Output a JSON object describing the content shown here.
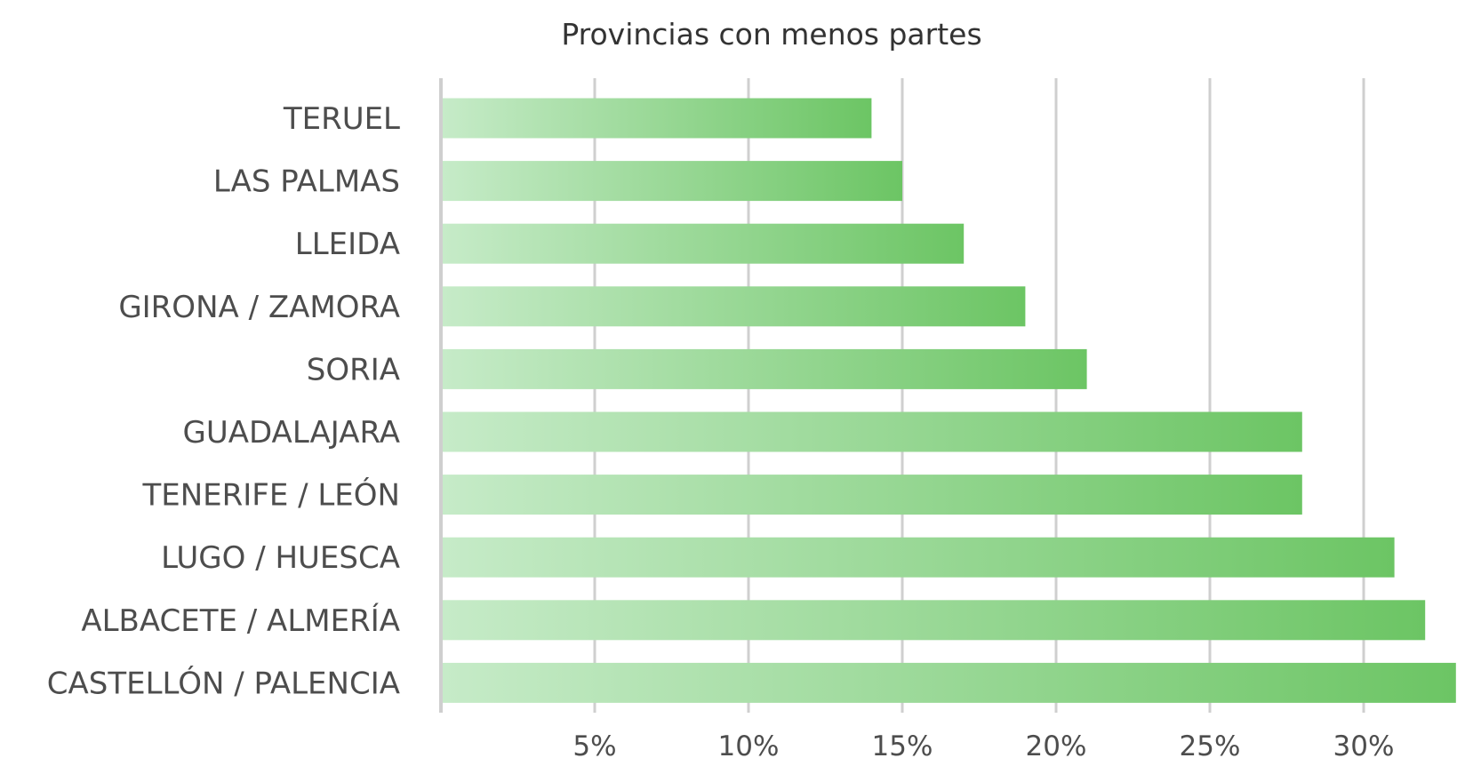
{
  "chart_data": {
    "type": "bar",
    "orientation": "horizontal",
    "title": "Provincias con menos partes",
    "xlabel": "",
    "ylabel": "",
    "categories": [
      "TERUEL",
      "LAS PALMAS",
      "LLEIDA",
      "GIRONA / ZAMORA",
      "SORIA",
      "GUADALAJARA",
      "TENERIFE / LEÓN",
      "LUGO / HUESCA",
      "ALBACETE / ALMERÍA",
      "CASTELLÓN / PALENCIA"
    ],
    "values": [
      14,
      15,
      17,
      19,
      21,
      28,
      28,
      31,
      32,
      33
    ],
    "xlim": [
      0,
      33
    ],
    "xticks": [
      5,
      10,
      15,
      20,
      25,
      30
    ],
    "xtick_labels": [
      "5%",
      "10%",
      "15%",
      "20%",
      "25%",
      "30%"
    ],
    "grid": true,
    "bar_color_start": "#c6ebc8",
    "bar_color_end": "#6cc564",
    "grid_color": "#cfcfcf",
    "text_color": "#4d4d4d"
  }
}
